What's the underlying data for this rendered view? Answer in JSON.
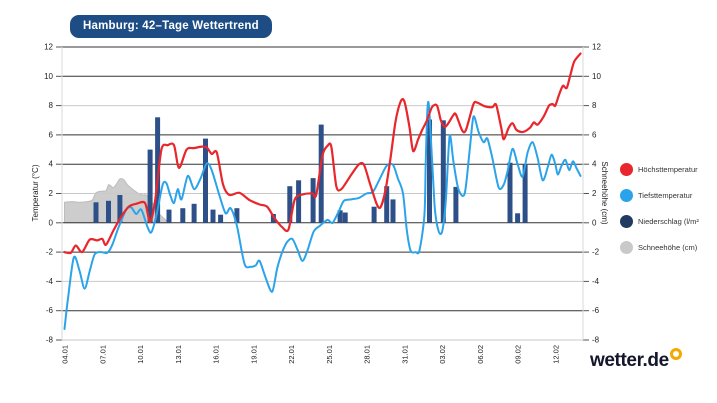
{
  "header": {
    "title": "Hamburg: 42–Tage Wettertrend",
    "badge_bg": "#1d4d84",
    "badge_text_color": "#ffffff"
  },
  "branding": {
    "logo_text": "wetter.de",
    "logo_color": "#15152b",
    "logo_ring_color": "#f5a800"
  },
  "chart_data": {
    "type": "line",
    "subtype": "mixed-line-bar-area",
    "title": "Hamburg: 42–Tage Wettertrend",
    "x_axis": {
      "start": "04.01",
      "end": "14.02",
      "num_days": 42,
      "tick_interval_days": 3,
      "tick_labels": [
        "04.01",
        "07.01",
        "10.01",
        "13.01",
        "16.01",
        "19.01",
        "22.01",
        "25.01",
        "28.01",
        "31.01",
        "03.02",
        "06.02",
        "09.02",
        "12.02"
      ]
    },
    "y_left": {
      "label": "Temperatur (°C)",
      "min": -8,
      "max": 12,
      "step": 2
    },
    "y_right": {
      "label": "Schneehöhe (cm)",
      "min": -8,
      "max": 12,
      "step": 2
    },
    "gridlines": {
      "dark": [
        12,
        10,
        6,
        4,
        0,
        -2,
        -6
      ],
      "light": [
        8,
        2,
        -4,
        -8
      ]
    },
    "series": [
      {
        "id": "hoechsttemperatur",
        "label": "Höchsttemperatur",
        "type": "line",
        "color": "#e8262b",
        "unit": "°C",
        "points": [
          [
            0,
            -2.0
          ],
          [
            0.5,
            -2.05
          ],
          [
            0.9,
            -1.55
          ],
          [
            1.4,
            -2.0
          ],
          [
            2.0,
            -1.15
          ],
          [
            2.6,
            -1.2
          ],
          [
            3.0,
            -1.1
          ],
          [
            3.3,
            -1.5
          ],
          [
            3.9,
            -0.5
          ],
          [
            4.5,
            0.4
          ],
          [
            5.1,
            1.1
          ],
          [
            5.7,
            1.3
          ],
          [
            6.4,
            1.35
          ],
          [
            6.8,
            0.05
          ],
          [
            7.2,
            1.5
          ],
          [
            7.7,
            5.0
          ],
          [
            8.2,
            5.3
          ],
          [
            8.7,
            5.3
          ],
          [
            9.1,
            3.75
          ],
          [
            9.7,
            5.0
          ],
          [
            10.3,
            5.1
          ],
          [
            10.9,
            5.2
          ],
          [
            11.3,
            5.15
          ],
          [
            11.7,
            4.7
          ],
          [
            12.1,
            4.8
          ],
          [
            12.6,
            2.6
          ],
          [
            13.1,
            1.9
          ],
          [
            13.9,
            2.05
          ],
          [
            14.7,
            1.55
          ],
          [
            15.5,
            1.25
          ],
          [
            16.1,
            1.1
          ],
          [
            16.7,
            0.3
          ],
          [
            17.3,
            -0.3
          ],
          [
            17.8,
            -0.45
          ],
          [
            18.3,
            1.6
          ],
          [
            19.0,
            1.95
          ],
          [
            19.7,
            2.0
          ],
          [
            20.0,
            1.9
          ],
          [
            20.5,
            4.6
          ],
          [
            20.9,
            5.25
          ],
          [
            21.2,
            5.2
          ],
          [
            21.6,
            2.5
          ],
          [
            22.0,
            2.3
          ],
          [
            22.8,
            3.3
          ],
          [
            23.4,
            4.0
          ],
          [
            23.8,
            3.95
          ],
          [
            24.3,
            2.6
          ],
          [
            24.8,
            1.3
          ],
          [
            25.1,
            1.05
          ],
          [
            25.5,
            2.2
          ],
          [
            25.9,
            4.4
          ],
          [
            26.3,
            6.9
          ],
          [
            26.7,
            8.25
          ],
          [
            27.0,
            8.3
          ],
          [
            27.4,
            6.6
          ],
          [
            27.7,
            4.9
          ],
          [
            28.1,
            5.7
          ],
          [
            28.4,
            6.3
          ],
          [
            28.8,
            7.0
          ],
          [
            29.2,
            7.9
          ],
          [
            29.6,
            8.0
          ],
          [
            29.9,
            7.0
          ],
          [
            30.2,
            6.55
          ],
          [
            30.5,
            6.8
          ],
          [
            30.9,
            7.35
          ],
          [
            31.1,
            7.4
          ],
          [
            31.6,
            6.3
          ],
          [
            31.9,
            6.35
          ],
          [
            32.5,
            8.1
          ],
          [
            32.8,
            8.2
          ],
          [
            33.4,
            7.95
          ],
          [
            34.0,
            7.9
          ],
          [
            34.3,
            8.05
          ],
          [
            34.7,
            6.5
          ],
          [
            34.9,
            5.7
          ],
          [
            35.3,
            6.5
          ],
          [
            35.6,
            6.8
          ],
          [
            35.9,
            6.35
          ],
          [
            36.3,
            6.2
          ],
          [
            36.6,
            6.25
          ],
          [
            37.0,
            6.5
          ],
          [
            37.3,
            6.85
          ],
          [
            37.6,
            6.7
          ],
          [
            38.1,
            7.3
          ],
          [
            38.5,
            8.0
          ],
          [
            38.8,
            8.1
          ],
          [
            39.0,
            8.0
          ],
          [
            39.3,
            8.75
          ],
          [
            39.6,
            9.35
          ],
          [
            39.9,
            9.2
          ],
          [
            40.2,
            10.1
          ],
          [
            40.5,
            11.0
          ],
          [
            41,
            11.55
          ]
        ]
      },
      {
        "id": "tiefsttemperatur",
        "label": "Tiefsttemperatur",
        "type": "line",
        "color": "#2ba3ea",
        "unit": "°C",
        "points": [
          [
            0,
            -7.25
          ],
          [
            0.3,
            -5.0
          ],
          [
            0.75,
            -2.35
          ],
          [
            1.2,
            -3.3
          ],
          [
            1.6,
            -4.5
          ],
          [
            2.0,
            -3.3
          ],
          [
            2.4,
            -2.15
          ],
          [
            2.9,
            -2.0
          ],
          [
            3.4,
            -2.05
          ],
          [
            3.8,
            -1.5
          ],
          [
            4.3,
            -0.3
          ],
          [
            4.9,
            0.9
          ],
          [
            5.3,
            1.05
          ],
          [
            5.7,
            0.6
          ],
          [
            6.1,
            0.9
          ],
          [
            6.6,
            -0.3
          ],
          [
            6.9,
            -0.65
          ],
          [
            7.3,
            0.5
          ],
          [
            7.8,
            2.6
          ],
          [
            8.1,
            2.7
          ],
          [
            8.4,
            1.9
          ],
          [
            8.7,
            1.35
          ],
          [
            9.0,
            2.3
          ],
          [
            9.3,
            1.6
          ],
          [
            9.8,
            3.2
          ],
          [
            10.3,
            2.3
          ],
          [
            10.8,
            3.0
          ],
          [
            11.3,
            4.05
          ],
          [
            11.7,
            3.6
          ],
          [
            12.3,
            1.9
          ],
          [
            12.8,
            0.65
          ],
          [
            13.2,
            1.0
          ],
          [
            13.7,
            -0.2
          ],
          [
            14.3,
            -2.8
          ],
          [
            14.8,
            -3.0
          ],
          [
            15.2,
            -2.9
          ],
          [
            15.5,
            -2.6
          ],
          [
            16.0,
            -3.8
          ],
          [
            16.5,
            -4.7
          ],
          [
            16.9,
            -3.1
          ],
          [
            17.3,
            -2.0
          ],
          [
            17.7,
            -1.3
          ],
          [
            18.1,
            -1.1
          ],
          [
            18.5,
            -1.8
          ],
          [
            18.9,
            -2.6
          ],
          [
            19.3,
            -1.9
          ],
          [
            19.8,
            -0.6
          ],
          [
            20.3,
            -0.2
          ],
          [
            20.9,
            0.2
          ],
          [
            21.3,
            0.0
          ],
          [
            21.8,
            0.8
          ],
          [
            22.2,
            1.5
          ],
          [
            22.8,
            1.6
          ],
          [
            23.4,
            1.7
          ],
          [
            24.0,
            2.0
          ],
          [
            24.5,
            2.1
          ],
          [
            25.0,
            2.9
          ],
          [
            25.6,
            3.9
          ],
          [
            26.1,
            3.95
          ],
          [
            26.5,
            3.0
          ],
          [
            26.9,
            2.0
          ],
          [
            27.2,
            -0.5
          ],
          [
            27.5,
            -1.9
          ],
          [
            27.9,
            -2.0
          ],
          [
            28.2,
            -1.9
          ],
          [
            28.6,
            0.5
          ],
          [
            28.7,
            4.0
          ],
          [
            28.85,
            7.9
          ],
          [
            29.0,
            7.5
          ],
          [
            29.4,
            1.25
          ],
          [
            29.7,
            -0.5
          ],
          [
            30.0,
            -0.6
          ],
          [
            30.3,
            1.5
          ],
          [
            30.6,
            5.9
          ],
          [
            30.9,
            4.2
          ],
          [
            31.3,
            2.3
          ],
          [
            31.8,
            2.0
          ],
          [
            32.2,
            5.0
          ],
          [
            32.5,
            7.25
          ],
          [
            32.9,
            6.2
          ],
          [
            33.3,
            5.5
          ],
          [
            33.6,
            5.75
          ],
          [
            34.0,
            4.4
          ],
          [
            34.5,
            2.4
          ],
          [
            34.9,
            2.6
          ],
          [
            35.2,
            3.5
          ],
          [
            35.6,
            5.05
          ],
          [
            36.0,
            4.0
          ],
          [
            36.4,
            3.15
          ],
          [
            36.8,
            4.8
          ],
          [
            37.2,
            5.5
          ],
          [
            37.6,
            4.4
          ],
          [
            38.0,
            2.9
          ],
          [
            38.4,
            3.8
          ],
          [
            38.7,
            4.65
          ],
          [
            39.0,
            4.0
          ],
          [
            39.2,
            3.3
          ],
          [
            39.5,
            3.9
          ],
          [
            39.8,
            4.3
          ],
          [
            40.1,
            3.6
          ],
          [
            40.4,
            4.2
          ],
          [
            40.7,
            3.7
          ],
          [
            41,
            3.2
          ]
        ]
      },
      {
        "id": "niederschlag",
        "label": "Niederschlag (l/m²",
        "type": "bar",
        "color": "#2d5089",
        "unit": "l/m²",
        "points": [
          [
            2.5,
            1.4
          ],
          [
            3.5,
            1.5
          ],
          [
            4.4,
            1.9
          ],
          [
            6.8,
            5.0
          ],
          [
            7.4,
            7.2
          ],
          [
            8.3,
            0.9
          ],
          [
            9.4,
            1.0
          ],
          [
            10.3,
            1.3
          ],
          [
            11.2,
            5.75
          ],
          [
            11.8,
            0.9
          ],
          [
            12.4,
            0.55
          ],
          [
            13.7,
            1.0
          ],
          [
            16.6,
            0.6
          ],
          [
            17.9,
            2.5
          ],
          [
            18.6,
            2.9
          ],
          [
            19.75,
            3.05
          ],
          [
            20.4,
            6.7
          ],
          [
            21.9,
            0.85
          ],
          [
            22.3,
            0.7
          ],
          [
            24.6,
            1.1
          ],
          [
            25.6,
            2.5
          ],
          [
            26.1,
            1.6
          ],
          [
            29.0,
            7.05
          ],
          [
            30.1,
            7.0
          ],
          [
            31.1,
            2.45
          ],
          [
            35.4,
            4.1
          ],
          [
            36.0,
            0.65
          ],
          [
            36.6,
            4.0
          ]
        ]
      },
      {
        "id": "schneehoehe",
        "label": "Schneehöhe (cm)",
        "type": "area",
        "color": "#cdcdcd",
        "edge_color": "#bcbcbc",
        "unit": "cm",
        "points": [
          [
            0,
            1.4
          ],
          [
            0.6,
            1.45
          ],
          [
            1.2,
            1.4
          ],
          [
            1.8,
            1.45
          ],
          [
            2.2,
            1.55
          ],
          [
            2.5,
            2.05
          ],
          [
            2.9,
            2.15
          ],
          [
            3.3,
            2.2
          ],
          [
            3.5,
            2.6
          ],
          [
            3.7,
            2.5
          ],
          [
            3.9,
            2.4
          ],
          [
            4.2,
            2.75
          ],
          [
            4.4,
            3.0
          ],
          [
            4.7,
            2.95
          ],
          [
            5.0,
            2.6
          ],
          [
            5.4,
            2.3
          ],
          [
            5.8,
            2.05
          ],
          [
            6.2,
            1.9
          ],
          [
            6.5,
            1.9
          ],
          [
            6.8,
            1.6
          ],
          [
            7.1,
            1.2
          ],
          [
            7.5,
            0.65
          ],
          [
            7.9,
            0.3
          ],
          [
            8.3,
            0
          ]
        ]
      }
    ],
    "legend": [
      {
        "label": "Höchsttemperatur",
        "color": "#e8262b"
      },
      {
        "label": "Tiefsttemperatur",
        "color": "#2ba3ea"
      },
      {
        "label": "Niederschlag (l/m²",
        "color": "#203a61"
      },
      {
        "label": "Schneehöhe (cm)",
        "color": "#c9c9c9"
      }
    ]
  }
}
